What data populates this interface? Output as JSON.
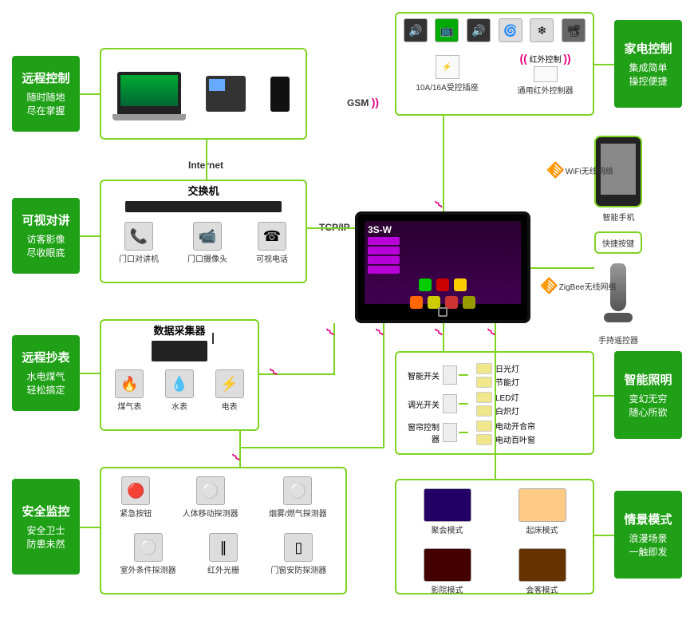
{
  "modules": {
    "remote_control": {
      "title": "远程控制",
      "sub": "随时随地\n尽在掌握"
    },
    "video_intercom": {
      "title": "可视对讲",
      "sub": "访客影像\n尽收眼底"
    },
    "remote_meter": {
      "title": "远程抄表",
      "sub": "水电煤气\n轻松搞定"
    },
    "security": {
      "title": "安全监控",
      "sub": "安全卫士\n防患未然"
    },
    "appliance": {
      "title": "家电控制",
      "sub": "集成简单\n操控便捷"
    },
    "lighting": {
      "title": "智能照明",
      "sub": "变幻无穷\n随心所欲"
    },
    "scene": {
      "title": "情景模式",
      "sub": "浪漫场景\n一触即发"
    }
  },
  "labels": {
    "gsm": "GSM",
    "internet": "Internet",
    "tcp_ip": "TCP/IP",
    "switch": "交换机",
    "data_collector": "数据采集器",
    "wifi_network": "WiFi无线网络",
    "zigbee_network": "ZigBee无线网络",
    "ir_control": "红外控制",
    "socket_label": "10A/16A受控插座",
    "ir_controller": "通用红外控制器",
    "smartphone": "智能手机",
    "quick_button": "快捷按键",
    "handheld_remote": "手持遥控器"
  },
  "intercom_items": [
    "门口对讲机",
    "门口摄像头",
    "可视电话"
  ],
  "meter_items": [
    "煤气表",
    "水表",
    "电表"
  ],
  "security_row1": [
    "紧急按钮",
    "人体移动探测器",
    "烟雾/燃气探测器"
  ],
  "security_row2": [
    "室外条件探测器",
    "红外光栅",
    "门窗安防探测器"
  ],
  "scene_items": [
    "聚会模式",
    "起床模式",
    "影院模式",
    "会客模式"
  ],
  "lighting_switches": [
    "智能开关",
    "调光开关",
    "窗帘控制器"
  ],
  "lighting_outputs": [
    [
      "日光灯",
      "节能灯"
    ],
    [
      "LED灯",
      "白炽灯"
    ],
    [
      "电动开合帘",
      "电动百叶窗"
    ]
  ],
  "central_brand": "3S-W",
  "colors": {
    "green": "#1fa016",
    "border": "#7ed321",
    "magenta": "#e6007e"
  }
}
